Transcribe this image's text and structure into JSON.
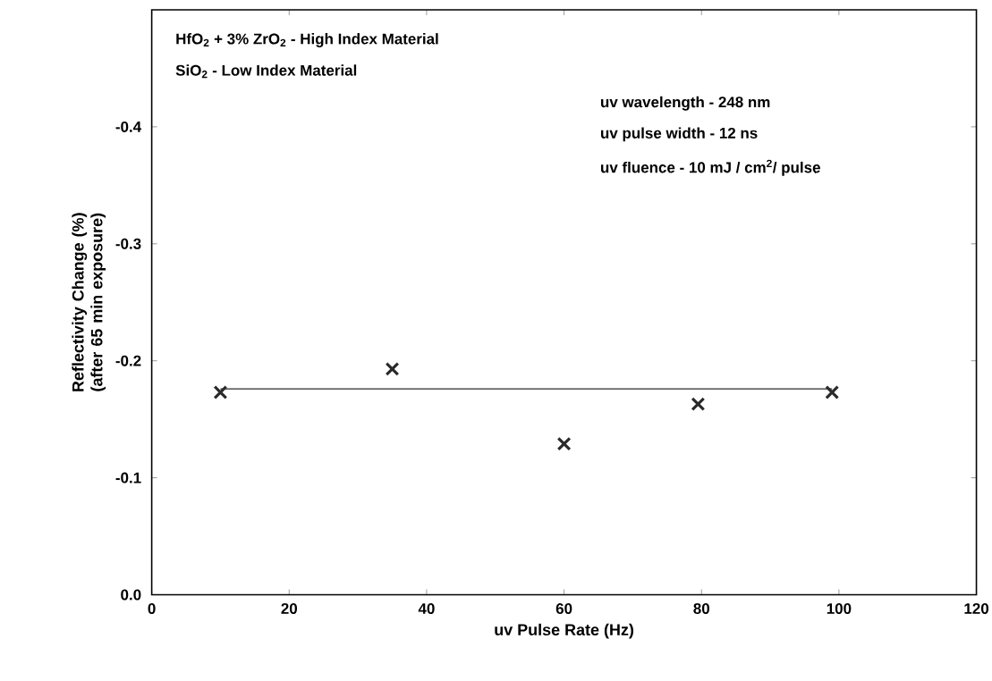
{
  "chart_data": {
    "type": "scatter",
    "xlabel": "uv Pulse Rate (Hz)",
    "ylabel": "Reflectivity Change (%) (after 65 min exposure)",
    "xlim": [
      0,
      120
    ],
    "xticks": [
      0,
      20,
      40,
      60,
      80,
      100,
      120
    ],
    "ylim": [
      0,
      -0.5
    ],
    "yticks": [
      {
        "value": 0,
        "label": "0.0"
      },
      -0.1,
      -0.2,
      -0.3,
      -0.4
    ],
    "grid": false,
    "marker": "cross",
    "series": [
      {
        "color": "#2a2a2a",
        "x": [
          10,
          35,
          60,
          79.5,
          99
        ],
        "values": [
          -0.173,
          -0.193,
          -0.129,
          -0.163,
          -0.173
        ]
      },
      {
        "type": "line",
        "color": "#2a2a2a",
        "marker": "none",
        "line_style": "solid",
        "x": [
          10,
          99
        ],
        "values": [
          -0.176,
          -0.176
        ]
      }
    ],
    "annotations": [
      "HfO$_{2}$ + 3% ZrO$_{2}$ - High Index Material",
      "SiO$_{2}$ - Low Index Material",
      "uv wavelength - 248 nm",
      "uv pulse width - 12 ns",
      "uv fluence - 10 mJ / cm$^{2}$/ pulse"
    ]
  }
}
